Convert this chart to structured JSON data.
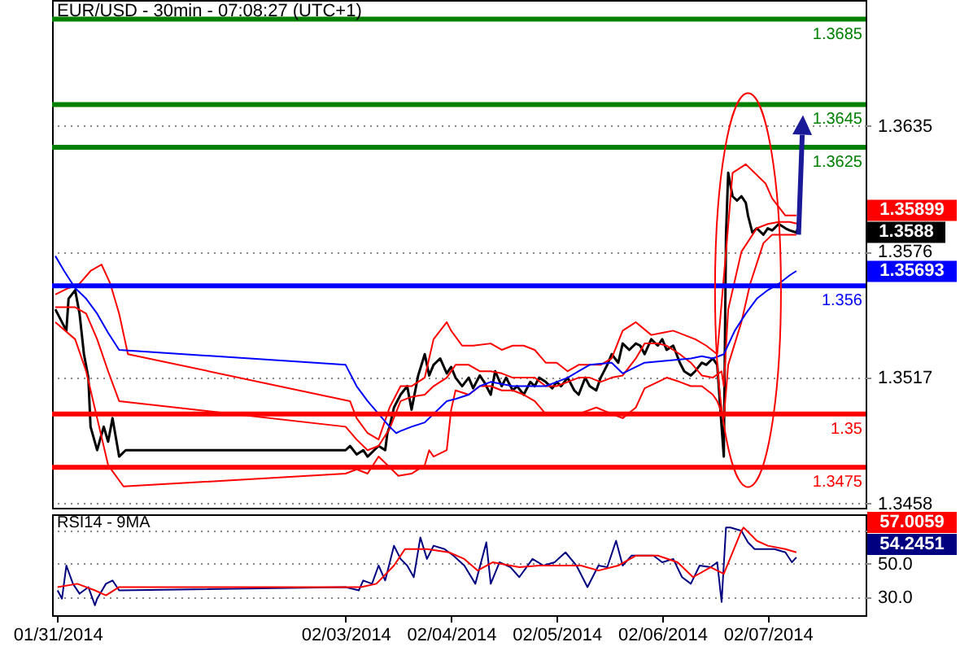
{
  "chart_data": [
    {
      "type": "line",
      "title": "EUR/USD - 30min - 07:08:27 (UTC+1)",
      "xlim": [
        "2014-01-31T05:15",
        "2014-02-07T22:15"
      ],
      "ylim": [
        1.3456,
        1.3694
      ],
      "yticks": [
        1.3635,
        1.3576,
        1.3517,
        1.3458
      ],
      "grid": "y",
      "tick_labels": "y",
      "ref_lines": [
        {
          "axis": "y",
          "value": 1.3685,
          "label": "1.3685",
          "color": "#008000"
        },
        {
          "axis": "y",
          "value": 1.3645,
          "label": "1.3645",
          "color": "#008000"
        },
        {
          "axis": "y",
          "value": 1.3625,
          "label": "1.3625",
          "color": "#008000"
        },
        {
          "axis": "y",
          "value": 1.356,
          "label": "1.356",
          "color": "#0000ff"
        },
        {
          "axis": "y",
          "value": 1.35,
          "label": "1.35",
          "color": "#ff0000"
        },
        {
          "axis": "y",
          "value": 1.3475,
          "label": "1.3475",
          "color": "#ff0000"
        }
      ],
      "annotations": [
        "1.35899",
        "1.3588",
        "1.35693"
      ],
      "series": [
        {
          "color": "#000000",
          "x": [
            "2014-01-31T06:00",
            "2014-01-31T07:30",
            "2014-01-31T08:30",
            "2014-01-31T09:00",
            "2014-01-31T10:30",
            "2014-01-31T11:30",
            "2014-01-31T12:30",
            "2014-01-31T13:30",
            "2014-01-31T14:00",
            "2014-01-31T15:30",
            "2014-01-31T17:00",
            "2014-01-31T18:00",
            "2014-01-31T19:00",
            "2014-01-31T20:30",
            "2014-01-31T22:00",
            "2014-02-03T00:00",
            "2014-02-03T01:00",
            "2014-02-03T02:30",
            "2014-02-03T04:00",
            "2014-02-03T05:00",
            "2014-02-03T06:30",
            "2014-02-03T07:30",
            "2014-02-03T09:00",
            "2014-02-03T09:30",
            "2014-02-03T10:00",
            "2014-02-03T11:00",
            "2014-02-03T12:30",
            "2014-02-03T14:00",
            "2014-02-03T15:00",
            "2014-02-03T16:30",
            "2014-02-03T18:00",
            "2014-02-03T19:00",
            "2014-02-03T20:00",
            "2014-02-03T21:30",
            "2014-02-03T23:00",
            "2014-02-04T00:00",
            "2014-02-04T01:00",
            "2014-02-04T02:30",
            "2014-02-04T04:00",
            "2014-02-04T05:00",
            "2014-02-04T06:30",
            "2014-02-04T07:30",
            "2014-02-04T09:00",
            "2014-02-04T10:00",
            "2014-02-04T11:30",
            "2014-02-04T12:30",
            "2014-02-04T14:00",
            "2014-02-04T15:00",
            "2014-02-04T16:30",
            "2014-02-04T18:00",
            "2014-02-04T19:00",
            "2014-02-04T20:00",
            "2014-02-04T21:30",
            "2014-02-04T23:00",
            "2014-02-05T00:00",
            "2014-02-05T01:00",
            "2014-02-05T02:30",
            "2014-02-05T04:00",
            "2014-02-05T05:00",
            "2014-02-05T06:30",
            "2014-02-05T07:30",
            "2014-02-05T09:00",
            "2014-02-05T10:00",
            "2014-02-05T11:30",
            "2014-02-05T12:30",
            "2014-02-05T14:00",
            "2014-02-05T15:00",
            "2014-02-05T16:30",
            "2014-02-05T18:00",
            "2014-02-05T19:00",
            "2014-02-05T20:00",
            "2014-02-05T21:30",
            "2014-02-05T23:00",
            "2014-02-06T00:00",
            "2014-02-06T01:00",
            "2014-02-06T02:30",
            "2014-02-06T04:00",
            "2014-02-06T05:00",
            "2014-02-06T06:30",
            "2014-02-06T07:30",
            "2014-02-06T09:00",
            "2014-02-06T10:00",
            "2014-02-06T11:30",
            "2014-02-06T12:30",
            "2014-02-06T13:30",
            "2014-02-06T14:00",
            "2014-02-06T14:30",
            "2014-02-06T15:00",
            "2014-02-06T16:00",
            "2014-02-06T17:00",
            "2014-02-06T18:00",
            "2014-02-06T19:00",
            "2014-02-06T19:30",
            "2014-02-06T20:30",
            "2014-02-06T21:30",
            "2014-02-06T23:00",
            "2014-02-07T00:00",
            "2014-02-07T01:00",
            "2014-02-07T02:30",
            "2014-02-07T04:00",
            "2014-02-07T05:00",
            "2014-02-07T06:30",
            "2014-02-07T07:00"
          ],
          "values": [
            1.3549,
            1.3543,
            1.3539,
            1.3554,
            1.3558,
            1.3547,
            1.3528,
            1.3517,
            1.3494,
            1.3483,
            1.3494,
            1.3487,
            1.3498,
            1.348,
            1.3483,
            1.3483,
            1.3485,
            1.3481,
            1.3483,
            1.348,
            1.3483,
            1.3485,
            1.3483,
            1.3491,
            1.3494,
            1.3503,
            1.3509,
            1.3513,
            1.3502,
            1.3518,
            1.3528,
            1.3518,
            1.3523,
            1.3526,
            1.3519,
            1.3522,
            1.3517,
            1.3513,
            1.3517,
            1.3512,
            1.3518,
            1.3515,
            1.3509,
            1.352,
            1.3513,
            1.3517,
            1.3511,
            1.3513,
            1.3509,
            1.3515,
            1.3513,
            1.3517,
            1.3515,
            1.3512,
            1.3515,
            1.3513,
            1.3517,
            1.3511,
            1.3509,
            1.3517,
            1.3513,
            1.3511,
            1.3517,
            1.3523,
            1.3528,
            1.3524,
            1.3533,
            1.353,
            1.3533,
            1.3532,
            1.3528,
            1.3535,
            1.3532,
            1.3535,
            1.353,
            1.3532,
            1.3524,
            1.352,
            1.3518,
            1.352,
            1.3524,
            1.3523,
            1.3526,
            1.3523,
            1.3494,
            1.348,
            1.3584,
            1.3613,
            1.3602,
            1.36,
            1.3602,
            1.3599,
            1.3593,
            1.3585,
            1.3587,
            1.3584,
            1.3587,
            1.3586,
            1.3589,
            1.3587,
            1.3586,
            1.3585,
            1.3588
          ]
        },
        {
          "color": "#ff0000",
          "x": [
            "2014-01-31T06:00",
            "2014-01-31T09:00",
            "2014-01-31T11:30",
            "2014-01-31T14:00",
            "2014-01-31T16:30",
            "2014-01-31T18:30",
            "2014-01-31T20:30",
            "2014-01-31T22:30",
            "2014-02-03T01:00",
            "2014-02-03T02:30",
            "2014-02-03T05:00",
            "2014-02-03T07:30",
            "2014-02-03T10:00",
            "2014-02-03T12:30",
            "2014-02-03T15:00",
            "2014-02-03T18:00",
            "2014-02-03T20:00",
            "2014-02-03T23:00",
            "2014-02-04T00:00",
            "2014-02-04T02:30",
            "2014-02-04T05:00",
            "2014-02-04T09:00",
            "2014-02-04T11:30",
            "2014-02-04T14:00",
            "2014-02-04T16:30",
            "2014-02-04T19:00",
            "2014-02-04T21:30",
            "2014-02-05T00:00",
            "2014-02-05T02:30",
            "2014-02-05T05:00",
            "2014-02-05T10:00",
            "2014-02-05T12:30",
            "2014-02-05T15:00",
            "2014-02-05T18:00",
            "2014-02-05T21:30",
            "2014-02-06T00:00",
            "2014-02-06T02:30",
            "2014-02-06T05:00",
            "2014-02-06T07:30",
            "2014-02-06T10:00",
            "2014-02-06T12:30",
            "2014-02-06T14:30",
            "2014-02-06T16:00",
            "2014-02-06T19:00",
            "2014-02-06T23:30",
            "2014-02-07T01:00",
            "2014-02-07T04:00",
            "2014-02-07T06:30"
          ],
          "values": [
            1.3556,
            1.3559,
            1.3561,
            1.3567,
            1.357,
            1.3561,
            1.3547,
            1.3528,
            1.3506,
            1.3498,
            1.3491,
            1.3488,
            1.3503,
            1.3513,
            1.3513,
            1.3517,
            1.3535,
            1.3543,
            1.3539,
            1.3532,
            1.3532,
            1.3533,
            1.353,
            1.3532,
            1.3532,
            1.353,
            1.3524,
            1.3524,
            1.352,
            1.3523,
            1.3523,
            1.3526,
            1.3539,
            1.3543,
            1.3537,
            1.3538,
            1.3539,
            1.3537,
            1.3535,
            1.3532,
            1.3528,
            1.3576,
            1.3613,
            1.3617,
            1.3608,
            1.3601,
            1.3593,
            1.3593
          ]
        },
        {
          "color": "#ff0000",
          "x": [
            "2014-01-31T06:00",
            "2014-01-31T10:30",
            "2014-01-31T13:00",
            "2014-01-31T15:30",
            "2014-01-31T18:00",
            "2014-01-31T20:30",
            "2014-02-03T00:00",
            "2014-02-03T02:30",
            "2014-02-03T05:00",
            "2014-02-03T07:30",
            "2014-02-03T10:00",
            "2014-02-03T12:30",
            "2014-02-03T15:00",
            "2014-02-03T18:00",
            "2014-02-03T20:00",
            "2014-02-03T23:00",
            "2014-02-04T01:00",
            "2014-02-04T04:00",
            "2014-02-04T06:30",
            "2014-02-04T09:00",
            "2014-02-04T11:30",
            "2014-02-04T14:00",
            "2014-02-04T19:00",
            "2014-02-04T21:30",
            "2014-02-05T00:00",
            "2014-02-05T02:30",
            "2014-02-05T05:00",
            "2014-02-05T07:30",
            "2014-02-05T10:00",
            "2014-02-05T12:30",
            "2014-02-05T15:00",
            "2014-02-05T18:00",
            "2014-02-05T20:00",
            "2014-02-05T23:00",
            "2014-02-06T01:00",
            "2014-02-06T04:00",
            "2014-02-06T06:30",
            "2014-02-06T09:00",
            "2014-02-06T11:30",
            "2014-02-06T13:30",
            "2014-02-06T14:00",
            "2014-02-06T15:00",
            "2014-02-06T18:00",
            "2014-02-06T21:30",
            "2014-02-07T00:00",
            "2014-02-07T02:30",
            "2014-02-07T05:00",
            "2014-02-07T07:00"
          ],
          "values": [
            1.355,
            1.355,
            1.3547,
            1.3535,
            1.352,
            1.3506,
            1.3494,
            1.3488,
            1.3483,
            1.3485,
            1.3493,
            1.3506,
            1.3508,
            1.3509,
            1.3513,
            1.3517,
            1.3523,
            1.3523,
            1.352,
            1.352,
            1.3519,
            1.3517,
            1.3517,
            1.3513,
            1.3513,
            1.3515,
            1.3517,
            1.3517,
            1.3515,
            1.3517,
            1.3518,
            1.3526,
            1.3533,
            1.3533,
            1.3532,
            1.3528,
            1.3524,
            1.3518,
            1.3517,
            1.352,
            1.3513,
            1.3549,
            1.3576,
            1.3587,
            1.3589,
            1.359,
            1.359,
            1.3589
          ]
        },
        {
          "color": "#ff0000",
          "x": [
            "2014-01-31T06:00",
            "2014-01-31T10:30",
            "2014-01-31T13:00",
            "2014-01-31T15:30",
            "2014-01-31T18:00",
            "2014-01-31T21:30",
            "2014-02-03T00:00",
            "2014-02-03T02:30",
            "2014-02-03T05:00",
            "2014-02-03T07:30",
            "2014-02-03T12:00",
            "2014-02-03T15:00",
            "2014-02-03T18:00",
            "2014-02-03T19:00",
            "2014-02-03T20:00",
            "2014-02-03T23:00",
            "2014-02-04T00:00",
            "2014-02-04T01:00",
            "2014-02-04T04:00",
            "2014-02-04T06:30",
            "2014-02-04T09:00",
            "2014-02-04T11:30",
            "2014-02-04T14:00",
            "2014-02-04T16:30",
            "2014-02-04T19:00",
            "2014-02-04T21:30",
            "2014-02-05T00:00",
            "2014-02-05T05:00",
            "2014-02-05T09:00",
            "2014-02-05T12:30",
            "2014-02-05T15:00",
            "2014-02-05T18:00",
            "2014-02-05T20:00",
            "2014-02-05T23:00",
            "2014-02-06T01:00",
            "2014-02-06T04:00",
            "2014-02-06T06:30",
            "2014-02-06T09:00",
            "2014-02-06T11:30",
            "2014-02-06T12:30",
            "2014-02-06T14:00",
            "2014-02-06T15:00",
            "2014-02-06T18:00",
            "2014-02-06T20:00",
            "2014-02-06T23:00",
            "2014-02-07T01:00",
            "2014-02-07T04:00",
            "2014-02-07T06:30"
          ],
          "values": [
            1.3543,
            1.3535,
            1.352,
            1.3498,
            1.3476,
            1.3466,
            1.3472,
            1.3474,
            1.3472,
            1.348,
            1.3471,
            1.3472,
            1.3476,
            1.3483,
            1.348,
            1.3483,
            1.3502,
            1.3511,
            1.3509,
            1.3513,
            1.3513,
            1.3511,
            1.3511,
            1.3509,
            1.3506,
            1.35,
            1.35,
            1.35,
            1.3503,
            1.35,
            1.3498,
            1.3503,
            1.3512,
            1.3515,
            1.3517,
            1.3515,
            1.3513,
            1.3513,
            1.3509,
            1.3506,
            1.3498,
            1.3523,
            1.3543,
            1.3561,
            1.358,
            1.3584,
            1.3584,
            1.3584
          ]
        },
        {
          "color": "#0000ff",
          "x": [
            "2014-01-31T06:00",
            "2014-01-31T08:00",
            "2014-01-31T10:30",
            "2014-01-31T13:00",
            "2014-01-31T15:30",
            "2014-01-31T18:00",
            "2014-01-31T20:30",
            "2014-02-03T00:00",
            "2014-02-03T02:30",
            "2014-02-03T05:00",
            "2014-02-03T07:30",
            "2014-02-03T10:00",
            "2014-02-03T11:30",
            "2014-02-03T12:30",
            "2014-02-03T15:00",
            "2014-02-03T18:00",
            "2014-02-03T20:00",
            "2014-02-03T23:00",
            "2014-02-04T01:00",
            "2014-02-04T04:00",
            "2014-02-04T06:30",
            "2014-02-04T09:00",
            "2014-02-04T14:00",
            "2014-02-04T21:30",
            "2014-02-05T00:00",
            "2014-02-05T02:30",
            "2014-02-05T05:00",
            "2014-02-05T07:30",
            "2014-02-05T12:30",
            "2014-02-05T15:00",
            "2014-02-05T18:00",
            "2014-02-05T20:00",
            "2014-02-06T06:30",
            "2014-02-06T09:00",
            "2014-02-06T11:30",
            "2014-02-06T14:00",
            "2014-02-06T16:30",
            "2014-02-06T19:00",
            "2014-02-06T21:30",
            "2014-02-07T00:00",
            "2014-02-07T02:30",
            "2014-02-07T05:00",
            "2014-02-07T06:30"
          ],
          "values": [
            1.3574,
            1.3567,
            1.3559,
            1.3554,
            1.3547,
            1.3538,
            1.353,
            1.3523,
            1.3513,
            1.3506,
            1.35,
            1.3494,
            1.3491,
            1.3492,
            1.3494,
            1.3496,
            1.35,
            1.3506,
            1.3507,
            1.3509,
            1.3513,
            1.3515,
            1.3513,
            1.3513,
            1.3515,
            1.3517,
            1.352,
            1.3523,
            1.3524,
            1.3519,
            1.3522,
            1.3524,
            1.3526,
            1.3527,
            1.3526,
            1.3528,
            1.3539,
            1.3547,
            1.3554,
            1.3558,
            1.3561,
            1.3565,
            1.3567
          ]
        }
      ]
    },
    {
      "type": "line",
      "title": "RSI14 - 9MA",
      "xlim": [
        "2014-01-31T05:15",
        "2014-02-07T22:15"
      ],
      "xticks": [
        {
          "value": "2014-01-31T06:30",
          "label": "01/31/2014"
        },
        {
          "value": "2014-02-03T00:00",
          "label": "02/03/2014"
        },
        {
          "value": "2014-02-04T00:00",
          "label": "02/04/2014"
        },
        {
          "value": "2014-02-05T00:00",
          "label": "02/05/2014"
        },
        {
          "value": "2014-02-06T00:00",
          "label": "02/06/2014"
        },
        {
          "value": "2014-02-07T00:00",
          "label": "02/07/2014"
        }
      ],
      "ylim": [
        19,
        80
      ],
      "yticks": [
        {
          "value": 30,
          "label": "30.0"
        },
        {
          "value": 50,
          "label": "50.0"
        },
        {
          "value": 70,
          "label": null
        }
      ],
      "grid": "y",
      "annotations": [
        "57.0059",
        "54.2451"
      ],
      "series": [
        {
          "color": "#000080",
          "x": [
            "2014-01-31T06:30",
            "2014-01-31T07:30",
            "2014-01-31T08:30",
            "2014-01-31T10:00",
            "2014-01-31T11:30",
            "2014-01-31T13:30",
            "2014-01-31T15:00",
            "2014-01-31T15:30",
            "2014-01-31T17:30",
            "2014-01-31T19:00",
            "2014-01-31T20:30",
            "2014-02-03T00:00",
            "2014-02-03T03:00",
            "2014-02-03T04:00",
            "2014-02-03T06:00",
            "2014-02-03T07:30",
            "2014-02-03T09:00",
            "2014-02-03T11:00",
            "2014-02-03T12:30",
            "2014-02-03T14:00",
            "2014-02-03T15:30",
            "2014-02-03T17:00",
            "2014-02-03T18:30",
            "2014-02-03T20:00",
            "2014-02-03T22:30",
            "2014-02-04T00:30",
            "2014-02-04T03:00",
            "2014-02-04T05:30",
            "2014-02-04T08:00",
            "2014-02-04T09:00",
            "2014-02-04T11:00",
            "2014-02-04T13:30",
            "2014-02-04T15:30",
            "2014-02-04T18:30",
            "2014-02-04T21:00",
            "2014-02-04T23:30",
            "2014-02-05T02:00",
            "2014-02-05T04:30",
            "2014-02-05T07:00",
            "2014-02-05T09:30",
            "2014-02-05T11:30",
            "2014-02-05T13:30",
            "2014-02-05T15:00",
            "2014-02-05T17:00",
            "2014-02-05T19:00",
            "2014-02-05T22:00",
            "2014-02-06T00:00",
            "2014-02-06T02:30",
            "2014-02-06T04:30",
            "2014-02-06T06:30",
            "2014-02-06T08:30",
            "2014-02-06T11:00",
            "2014-02-06T12:30",
            "2014-02-06T13:30",
            "2014-02-06T14:30",
            "2014-02-06T15:30",
            "2014-02-06T18:00",
            "2014-02-06T19:30",
            "2014-02-06T21:00",
            "2014-02-06T23:30",
            "2014-02-07T01:30",
            "2014-02-07T04:00",
            "2014-02-07T05:30",
            "2014-02-07T06:30"
          ],
          "values": [
            34,
            29,
            49,
            38,
            32,
            36,
            25,
            29,
            38,
            40,
            34,
            36,
            34,
            40,
            38,
            49,
            40,
            61,
            53,
            49,
            42,
            66,
            53,
            61,
            59,
            55,
            49,
            38,
            63,
            38,
            51,
            48,
            42,
            53,
            49,
            51,
            57,
            49,
            36,
            49,
            48,
            64,
            49,
            55,
            55,
            55,
            51,
            53,
            42,
            38,
            49,
            48,
            51,
            27,
            72,
            72,
            70,
            63,
            59,
            59,
            59,
            57,
            51,
            54
          ]
        },
        {
          "color": "#ff0000",
          "x": [
            "2014-01-31T06:30",
            "2014-01-31T11:00",
            "2014-01-31T15:00",
            "2014-01-31T17:30",
            "2014-01-31T20:30",
            "2014-02-03T03:30",
            "2014-02-03T07:00",
            "2014-02-03T11:00",
            "2014-02-03T13:30",
            "2014-02-03T18:30",
            "2014-02-03T23:30",
            "2014-02-04T03:00",
            "2014-02-04T06:00",
            "2014-02-04T09:30",
            "2014-02-04T15:30",
            "2014-02-04T20:00",
            "2014-02-05T00:30",
            "2014-02-05T05:30",
            "2014-02-05T09:30",
            "2014-02-05T14:00",
            "2014-02-05T18:00",
            "2014-02-05T23:00",
            "2014-02-06T03:30",
            "2014-02-06T07:00",
            "2014-02-06T11:00",
            "2014-02-06T14:00",
            "2014-02-06T18:00",
            "2014-02-06T18:30",
            "2014-02-06T21:30",
            "2014-02-07T00:00",
            "2014-02-07T04:00",
            "2014-02-07T06:30"
          ],
          "values": [
            36,
            38,
            34,
            31,
            36,
            36,
            38,
            49,
            59,
            59,
            57,
            53,
            46,
            51,
            48,
            49,
            49,
            49,
            46,
            49,
            55,
            55,
            51,
            42,
            48,
            44,
            70,
            72,
            64,
            61,
            59,
            57
          ]
        }
      ]
    }
  ]
}
